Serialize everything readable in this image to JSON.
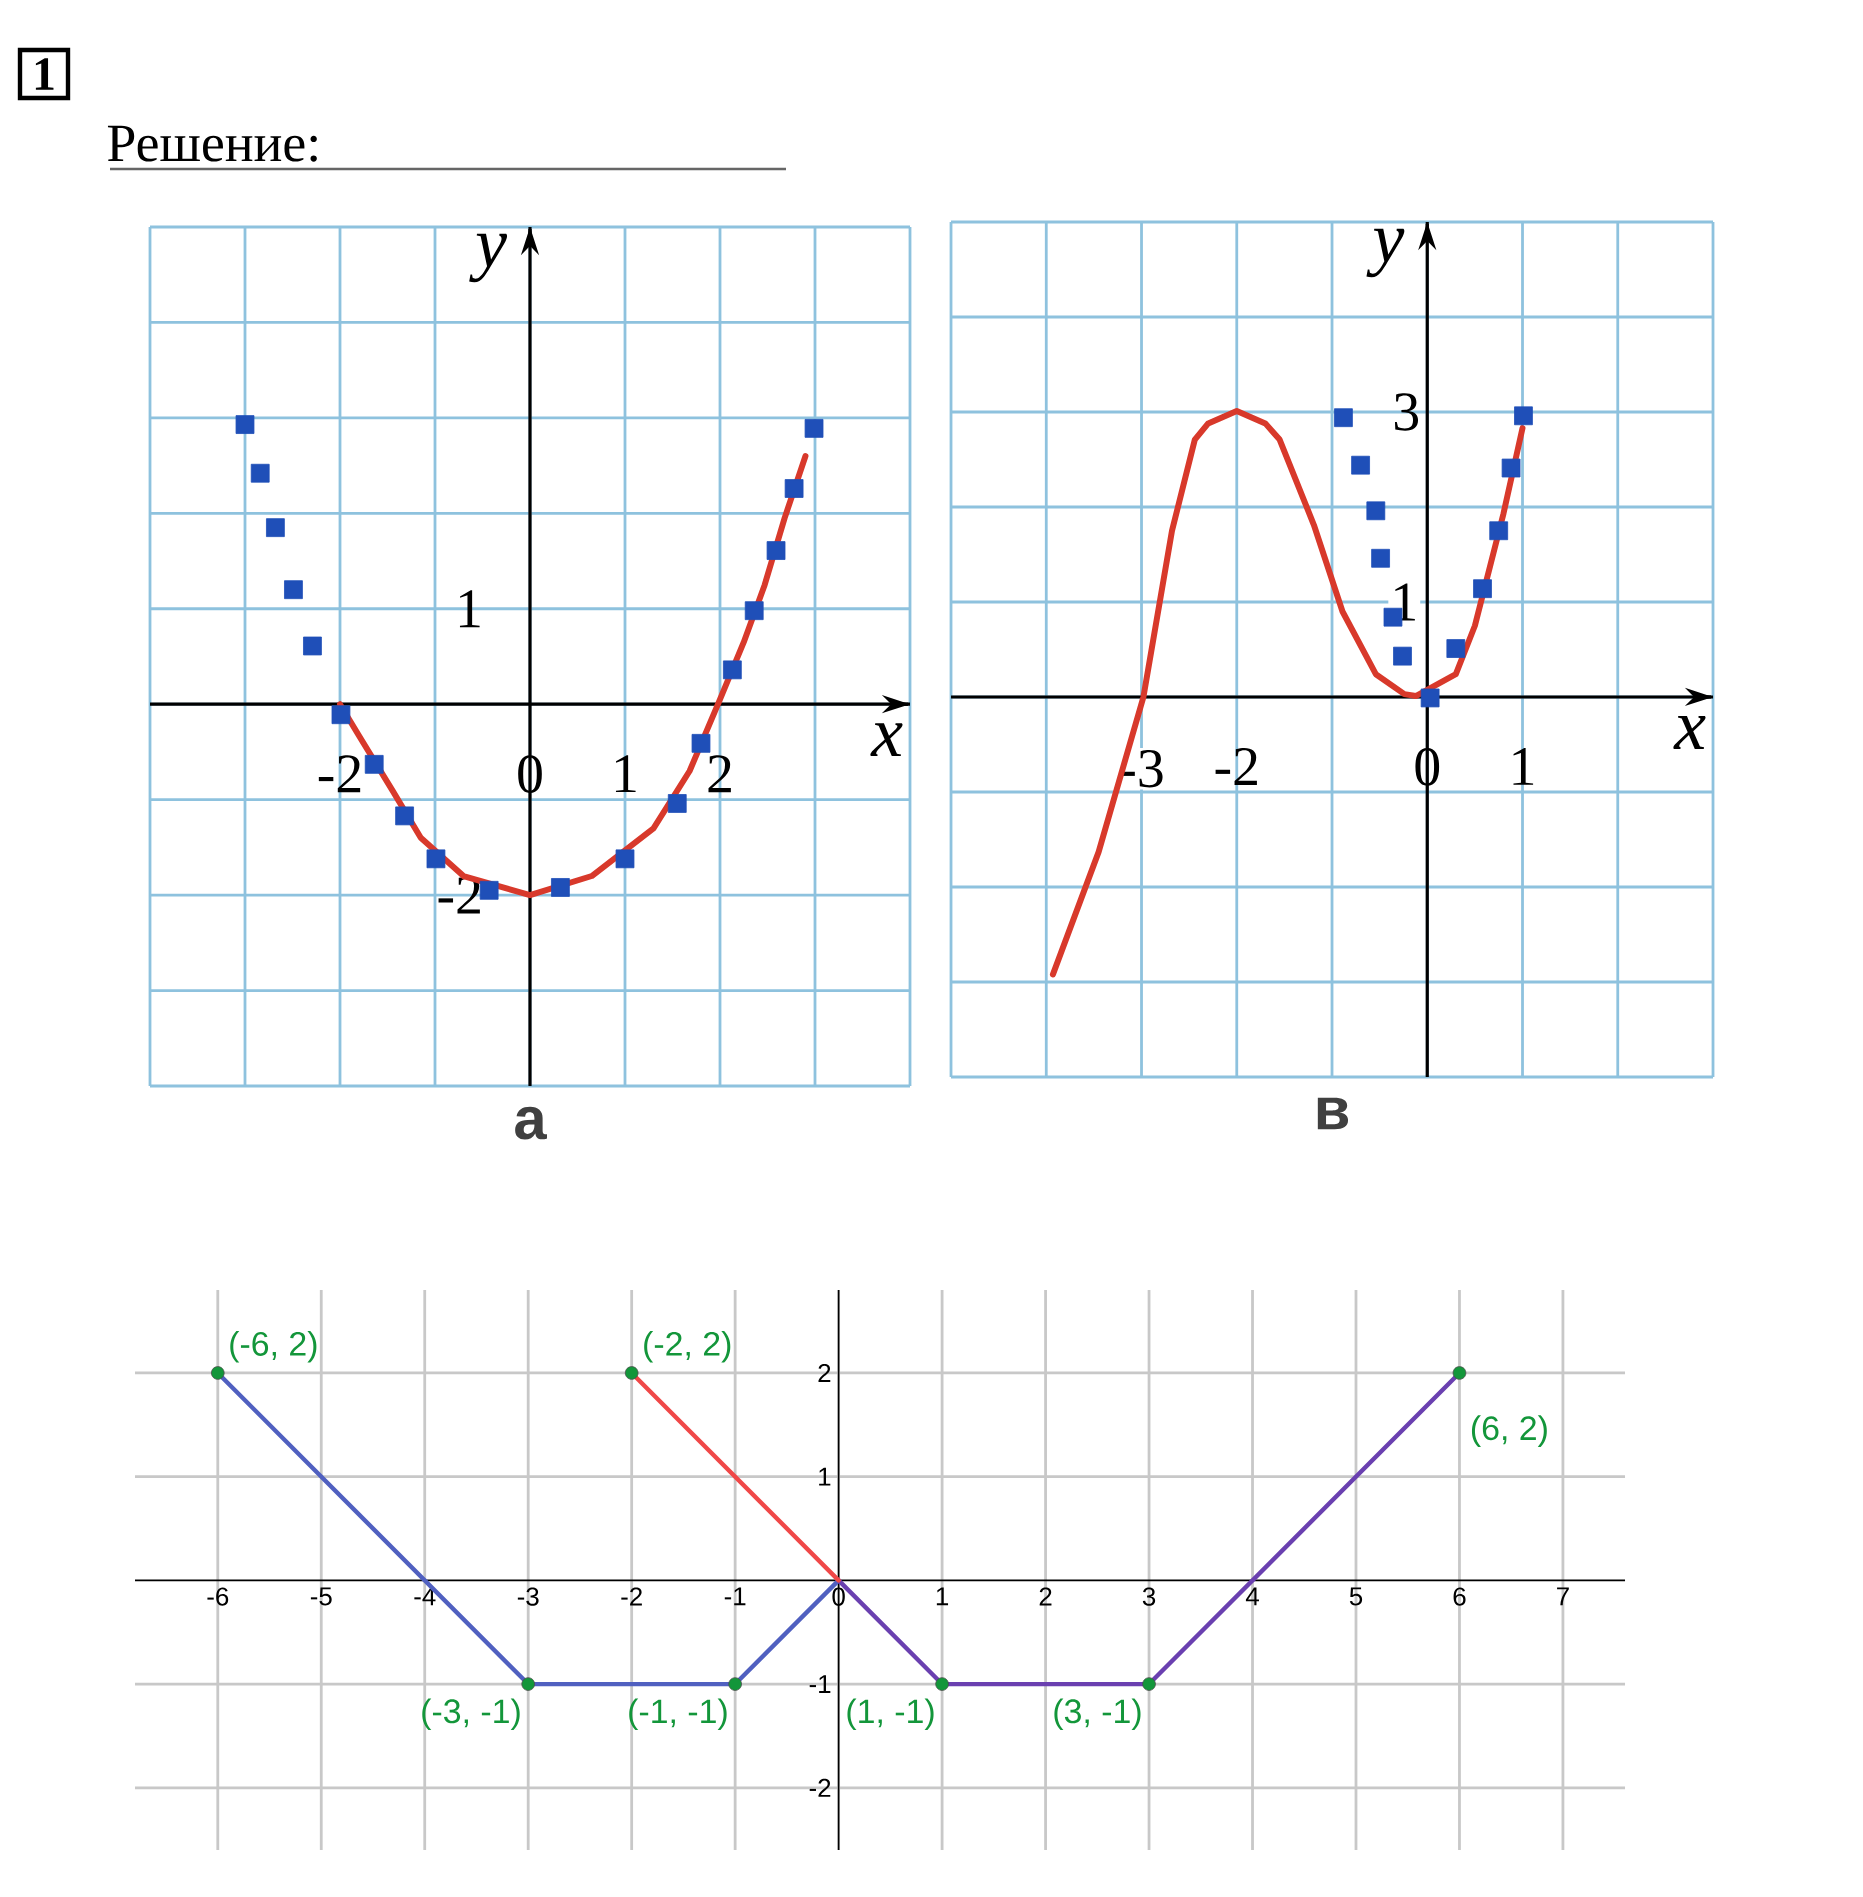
{
  "chart_data": [
    {
      "type": "line",
      "title": "а",
      "annotations": [
        "1",
        "Решение:"
      ],
      "xlabel": "x",
      "ylabel": "y",
      "xlim": [
        -4,
        4
      ],
      "ylim": [
        -4,
        5
      ],
      "xticks": [
        {
          "value": -4,
          "label": null
        },
        {
          "value": -3,
          "label": null
        },
        -2,
        {
          "value": -1,
          "label": null
        },
        0,
        1,
        2,
        {
          "value": 3,
          "label": null
        },
        {
          "value": 4,
          "label": null
        }
      ],
      "yticks": [
        {
          "value": -4,
          "label": null
        },
        {
          "value": -3,
          "label": null
        },
        -2,
        {
          "value": -1,
          "label": null
        },
        {
          "value": 0,
          "label": null
        },
        1,
        {
          "value": 2,
          "label": null
        },
        {
          "value": 3,
          "label": null
        },
        {
          "value": 4,
          "label": null
        },
        {
          "value": 5,
          "label": null
        }
      ],
      "grid": true,
      "series": [
        {
          "color": "#d8392b",
          "x": [
            -2,
            -1.8,
            -1.45,
            -1.15,
            -0.7,
            0,
            0.65,
            1.3,
            1.68,
            2,
            2.25,
            2.47,
            2.68,
            2.9
          ],
          "values": [
            0,
            -0.33,
            -0.9,
            -1.4,
            -1.8,
            -2,
            -1.8,
            -1.3,
            -0.7,
            0.05,
            0.65,
            1.25,
            1.95,
            2.6
          ]
        },
        {
          "type": "scatter",
          "color": "#1f4fb8",
          "marker": "square",
          "x": [
            -3,
            -2.84,
            -2.68,
            -2.49,
            -2.29,
            -1.99,
            -1.64,
            -1.32,
            -0.99,
            -0.43,
            0.32,
            1,
            1.55,
            1.8,
            2.13,
            2.36,
            2.59,
            2.78,
            2.99
          ],
          "values": [
            2.93,
            2.42,
            1.85,
            1.2,
            0.61,
            -0.11,
            -0.63,
            -1.17,
            -1.62,
            -1.95,
            -1.92,
            -1.62,
            -1.04,
            -0.41,
            0.36,
            0.98,
            1.61,
            2.26,
            2.89
          ]
        }
      ]
    },
    {
      "type": "line",
      "title": "в",
      "xlabel": "x",
      "ylabel": "y",
      "xlim": [
        -5,
        3
      ],
      "ylim": [
        -4,
        5
      ],
      "xticks": [
        {
          "value": -5,
          "label": null
        },
        {
          "value": -4,
          "label": null
        },
        -3,
        -2,
        {
          "value": -1,
          "label": null
        },
        0,
        1,
        {
          "value": 2,
          "label": null
        },
        {
          "value": 3,
          "label": null
        }
      ],
      "yticks": [
        {
          "value": -4,
          "label": null
        },
        {
          "value": -3,
          "label": null
        },
        {
          "value": -2,
          "label": null
        },
        {
          "value": -1,
          "label": null
        },
        {
          "value": 0,
          "label": null
        },
        1,
        {
          "value": 2,
          "label": null
        },
        3,
        {
          "value": 4,
          "label": null
        },
        {
          "value": 5,
          "label": null
        }
      ],
      "grid": true,
      "series": [
        {
          "color": "#d8392b",
          "x": [
            -3.93,
            -3.45,
            -2.98,
            -2.68,
            -2.44,
            -2.3,
            -2,
            -1.7,
            -1.55,
            -1.19,
            -0.89,
            -0.54,
            -0.24,
            -0.12,
            0.3,
            0.5,
            0.8,
            1
          ],
          "values": [
            -2.92,
            -1.63,
            0,
            1.75,
            2.71,
            2.88,
            3.01,
            2.88,
            2.71,
            1.81,
            0.9,
            0.24,
            0.03,
            0.01,
            0.24,
            0.75,
            1.93,
            2.83
          ]
        },
        {
          "type": "scatter",
          "color": "#1f4fb8",
          "marker": "square",
          "x": [
            -0.88,
            -0.7,
            -0.54,
            -0.49,
            -0.36,
            -0.26,
            0.03,
            0.3,
            0.58,
            0.75,
            0.88,
            1.01
          ],
          "values": [
            2.94,
            2.44,
            1.96,
            1.46,
            0.84,
            0.43,
            -0.01,
            0.51,
            1.14,
            1.75,
            2.41,
            2.96
          ]
        }
      ]
    },
    {
      "type": "line",
      "xlim": [
        -6.8,
        7.6
      ],
      "ylim": [
        -2.6,
        2.8
      ],
      "xticks": [
        -6,
        -5,
        -4,
        -3,
        -2,
        -1,
        0,
        1,
        2,
        3,
        4,
        5,
        6,
        7
      ],
      "yticks": [
        -2,
        -1,
        1,
        2
      ],
      "grid": true,
      "series": [
        {
          "color": "#5060c0",
          "x": [
            -6,
            -3,
            -1,
            0
          ],
          "values": [
            2,
            -1,
            -1,
            0
          ]
        },
        {
          "color": "#6a40b0",
          "x": [
            0,
            1,
            3,
            6
          ],
          "values": [
            0,
            -1,
            -1,
            2
          ]
        },
        {
          "color": "#f04848",
          "x": [
            -2,
            0
          ],
          "values": [
            2,
            0
          ]
        },
        {
          "type": "scatter",
          "color": "#13963a",
          "marker": "circle",
          "x": [
            -6,
            -3,
            -2,
            -1,
            1,
            3,
            6
          ],
          "values": [
            2,
            -1,
            2,
            -1,
            -1,
            -1,
            2
          ],
          "value_labels": [
            "(-6, 2)",
            "(-3, -1)",
            "(-2, 2)",
            "(-1, -1)",
            "(1, -1)",
            "(3, -1)",
            "(6, 2)"
          ]
        }
      ]
    }
  ]
}
